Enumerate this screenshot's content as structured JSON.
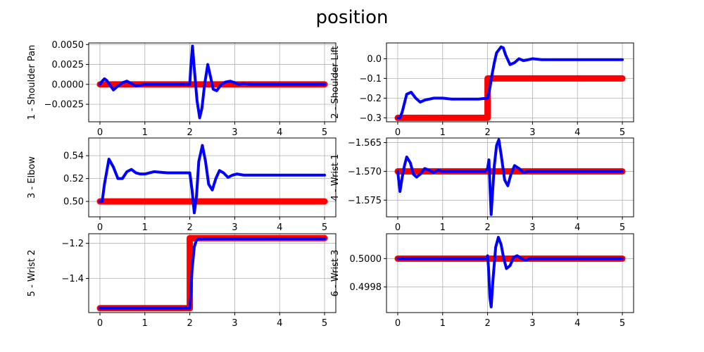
{
  "chart_data": {
    "type": "line",
    "title": "position",
    "colors": {
      "target": "#ff0000",
      "actual": "#0000ff",
      "grid": "#b0b0b0"
    },
    "grid": true,
    "panels": [
      {
        "ylabel": "1 - Shoulder Pan",
        "xlim": [
          -0.25,
          5.25
        ],
        "ylim": [
          -0.0047,
          0.0052
        ],
        "xticks": [
          0,
          1,
          2,
          3,
          4,
          5
        ],
        "yticks": [
          -0.0025,
          0.0,
          0.0025,
          0.005
        ],
        "ytick_labels": [
          "−0.0025",
          "0.0000",
          "0.0025",
          "0.0050"
        ],
        "target": {
          "x": [
            0,
            5
          ],
          "y": [
            0.0,
            0.0
          ]
        },
        "actual": {
          "x": [
            0,
            0.05,
            0.1,
            0.15,
            0.2,
            0.3,
            0.4,
            0.5,
            0.6,
            0.7,
            0.8,
            0.9,
            1.0,
            1.2,
            1.5,
            2.0,
            2.02,
            2.06,
            2.1,
            2.16,
            2.22,
            2.27,
            2.33,
            2.4,
            2.46,
            2.52,
            2.6,
            2.7,
            2.8,
            2.9,
            3.0,
            3.1,
            3.2,
            3.35,
            3.5,
            4.0,
            5.0
          ],
          "y": [
            0.0,
            0.0004,
            0.0007,
            0.0005,
            0.0001,
            -0.0007,
            -0.0002,
            0.0002,
            0.0004,
            0.0001,
            -0.0002,
            -0.0001,
            0.0,
            0.0,
            0.0,
            0.0,
            0.002,
            0.0048,
            0.002,
            -0.002,
            -0.0042,
            -0.003,
            0.0,
            0.0025,
            0.001,
            -0.0006,
            -0.0008,
            0.0,
            0.0003,
            0.0004,
            0.0002,
            0.0,
            0.0001,
            0.0,
            0.0,
            0.0,
            0.0
          ]
        }
      },
      {
        "ylabel": "2 - Shoulder Lift",
        "xlim": [
          -0.25,
          5.25
        ],
        "ylim": [
          -0.32,
          0.08
        ],
        "xticks": [
          0,
          1,
          2,
          3,
          4,
          5
        ],
        "yticks": [
          -0.3,
          -0.2,
          -0.1,
          0.0
        ],
        "ytick_labels": [
          "−0.3",
          "−0.2",
          "−0.1",
          "0.0"
        ],
        "target": {
          "x": [
            0,
            2.0,
            2.0,
            5
          ],
          "y": [
            -0.3,
            -0.3,
            -0.1,
            -0.1
          ]
        },
        "actual": {
          "x": [
            0,
            0.05,
            0.1,
            0.2,
            0.3,
            0.4,
            0.5,
            0.6,
            0.7,
            0.8,
            0.9,
            1.0,
            1.2,
            1.5,
            1.8,
            2.0,
            2.05,
            2.1,
            2.15,
            2.2,
            2.3,
            2.35,
            2.4,
            2.5,
            2.6,
            2.7,
            2.8,
            2.9,
            3.0,
            3.2,
            3.5,
            4.0,
            5.0
          ],
          "y": [
            -0.3,
            -0.3,
            -0.27,
            -0.18,
            -0.17,
            -0.2,
            -0.22,
            -0.21,
            -0.205,
            -0.2,
            -0.2,
            -0.2,
            -0.205,
            -0.205,
            -0.205,
            -0.2,
            -0.15,
            -0.08,
            -0.02,
            0.03,
            0.06,
            0.055,
            0.02,
            -0.03,
            -0.02,
            0.0,
            -0.01,
            -0.005,
            0.0,
            -0.005,
            -0.005,
            -0.005,
            -0.005
          ]
        }
      },
      {
        "ylabel": "3 - Elbow",
        "xlim": [
          -0.25,
          5.25
        ],
        "ylim": [
          0.4865,
          0.5555
        ],
        "xticks": [
          0,
          1,
          2,
          3,
          4,
          5
        ],
        "yticks": [
          0.5,
          0.52,
          0.54
        ],
        "ytick_labels": [
          "0.50",
          "0.52",
          "0.54"
        ],
        "target": {
          "x": [
            0,
            5
          ],
          "y": [
            0.5,
            0.5
          ]
        },
        "actual": {
          "x": [
            0,
            0.05,
            0.1,
            0.2,
            0.3,
            0.4,
            0.5,
            0.6,
            0.7,
            0.8,
            0.9,
            1.0,
            1.2,
            1.5,
            1.8,
            2.0,
            2.05,
            2.1,
            2.15,
            2.2,
            2.28,
            2.35,
            2.42,
            2.5,
            2.58,
            2.66,
            2.75,
            2.85,
            2.95,
            3.05,
            3.2,
            3.5,
            4.0,
            5.0
          ],
          "y": [
            0.5,
            0.5,
            0.515,
            0.537,
            0.53,
            0.52,
            0.52,
            0.526,
            0.528,
            0.525,
            0.524,
            0.524,
            0.526,
            0.525,
            0.525,
            0.525,
            0.51,
            0.49,
            0.505,
            0.535,
            0.549,
            0.535,
            0.515,
            0.51,
            0.52,
            0.527,
            0.525,
            0.521,
            0.523,
            0.524,
            0.523,
            0.523,
            0.523,
            0.523
          ]
        }
      },
      {
        "ylabel": "4 - Wrist 1",
        "xlim": [
          -0.25,
          5.25
        ],
        "ylim": [
          -1.5779,
          -1.5642
        ],
        "xticks": [
          0,
          1,
          2,
          3,
          4,
          5
        ],
        "yticks": [
          -1.575,
          -1.57,
          -1.565
        ],
        "ytick_labels": [
          "−1.575",
          "−1.570",
          "−1.565"
        ],
        "target": {
          "x": [
            0,
            5
          ],
          "y": [
            -1.57,
            -1.57
          ]
        },
        "actual": {
          "x": [
            0,
            0.05,
            0.1,
            0.15,
            0.2,
            0.28,
            0.35,
            0.42,
            0.5,
            0.6,
            0.7,
            0.8,
            0.9,
            1.0,
            1.2,
            1.5,
            1.8,
            1.95,
            2.0,
            2.03,
            2.05,
            2.08,
            2.1,
            2.15,
            2.2,
            2.25,
            2.3,
            2.38,
            2.45,
            2.52,
            2.6,
            2.7,
            2.8,
            2.9,
            3.0,
            3.2,
            3.5,
            4.0,
            5.0
          ],
          "y": [
            -1.57,
            -1.5735,
            -1.571,
            -1.569,
            -1.5675,
            -1.5685,
            -1.5705,
            -1.571,
            -1.5705,
            -1.5695,
            -1.5698,
            -1.5702,
            -1.5698,
            -1.57,
            -1.57,
            -1.57,
            -1.57,
            -1.57,
            -1.5695,
            -1.568,
            -1.572,
            -1.5775,
            -1.575,
            -1.569,
            -1.5655,
            -1.5645,
            -1.567,
            -1.5715,
            -1.5725,
            -1.5705,
            -1.569,
            -1.5695,
            -1.5702,
            -1.57,
            -1.57,
            -1.57,
            -1.57,
            -1.57,
            -1.57
          ]
        }
      },
      {
        "ylabel": "5 - Wrist 2",
        "xlim": [
          -0.25,
          5.25
        ],
        "ylim": [
          -1.595,
          -1.145
        ],
        "xticks": [
          0,
          1,
          2,
          3,
          4,
          5
        ],
        "yticks": [
          -1.4,
          -1.2
        ],
        "ytick_labels": [
          "−1.4",
          "−1.2"
        ],
        "target": {
          "x": [
            0,
            2.0,
            2.0,
            5
          ],
          "y": [
            -1.57,
            -1.57,
            -1.17,
            -1.17
          ]
        },
        "actual": {
          "x": [
            0,
            1.5,
            2.0,
            2.02,
            2.05,
            2.1,
            2.15,
            2.2,
            2.3,
            2.5,
            3.0,
            5.0
          ],
          "y": [
            -1.57,
            -1.57,
            -1.57,
            -1.5,
            -1.35,
            -1.22,
            -1.18,
            -1.175,
            -1.173,
            -1.173,
            -1.173,
            -1.173
          ]
        }
      },
      {
        "ylabel": "6 - Wrist 3",
        "xlim": [
          -0.25,
          5.25
        ],
        "ylim": [
          0.49962,
          0.500175
        ],
        "xticks": [
          0,
          1,
          2,
          3,
          4,
          5
        ],
        "yticks": [
          0.4998,
          0.5
        ],
        "ytick_labels": [
          "0.4998",
          "0.5000"
        ],
        "target": {
          "x": [
            0,
            5
          ],
          "y": [
            0.5,
            0.5
          ]
        },
        "actual": {
          "x": [
            0,
            0.5,
            1.0,
            1.5,
            1.9,
            1.98,
            2.0,
            2.02,
            2.05,
            2.08,
            2.12,
            2.18,
            2.24,
            2.3,
            2.36,
            2.42,
            2.5,
            2.58,
            2.66,
            2.75,
            2.85,
            2.95,
            3.1,
            3.3,
            3.6,
            4.0,
            5.0
          ],
          "y": [
            0.5,
            0.5,
            0.5,
            0.5,
            0.5,
            0.5,
            0.50002,
            0.49994,
            0.49973,
            0.49966,
            0.49985,
            0.50008,
            0.50015,
            0.5001,
            0.5,
            0.49993,
            0.49995,
            0.50001,
            0.50002,
            0.5,
            0.49999,
            0.5,
            0.5,
            0.5,
            0.5,
            0.5,
            0.5
          ]
        }
      }
    ]
  }
}
